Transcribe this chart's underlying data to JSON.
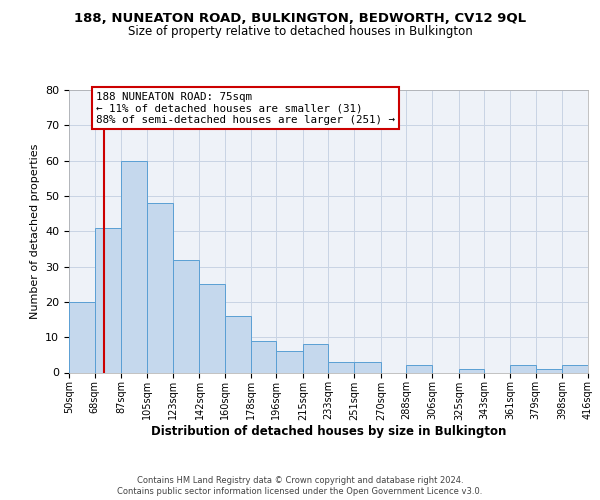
{
  "title": "188, NUNEATON ROAD, BULKINGTON, BEDWORTH, CV12 9QL",
  "subtitle": "Size of property relative to detached houses in Bulkington",
  "xlabel": "Distribution of detached houses by size in Bulkington",
  "ylabel": "Number of detached properties",
  "bar_edges": [
    50,
    68,
    87,
    105,
    123,
    142,
    160,
    178,
    196,
    215,
    233,
    251,
    270,
    288,
    306,
    325,
    343,
    361,
    379,
    398,
    416
  ],
  "bar_heights": [
    20,
    41,
    60,
    48,
    32,
    25,
    16,
    9,
    6,
    8,
    3,
    3,
    0,
    2,
    0,
    1,
    0,
    2,
    1,
    2
  ],
  "bar_color": "#c5d8ed",
  "bar_edge_color": "#5a9fd4",
  "reference_line_x": 75,
  "reference_line_color": "#cc0000",
  "annotation_text": "188 NUNEATON ROAD: 75sqm\n← 11% of detached houses are smaller (31)\n88% of semi-detached houses are larger (251) →",
  "annotation_box_color": "#ffffff",
  "annotation_box_edge_color": "#cc0000",
  "ylim": [
    0,
    80
  ],
  "yticks": [
    0,
    10,
    20,
    30,
    40,
    50,
    60,
    70,
    80
  ],
  "tick_labels": [
    "50sqm",
    "68sqm",
    "87sqm",
    "105sqm",
    "123sqm",
    "142sqm",
    "160sqm",
    "178sqm",
    "196sqm",
    "215sqm",
    "233sqm",
    "251sqm",
    "270sqm",
    "288sqm",
    "306sqm",
    "325sqm",
    "343sqm",
    "361sqm",
    "379sqm",
    "398sqm",
    "416sqm"
  ],
  "footer1": "Contains HM Land Registry data © Crown copyright and database right 2024.",
  "footer2": "Contains public sector information licensed under the Open Government Licence v3.0.",
  "background_color": "#eef2f8",
  "grid_color": "#c8d4e4"
}
